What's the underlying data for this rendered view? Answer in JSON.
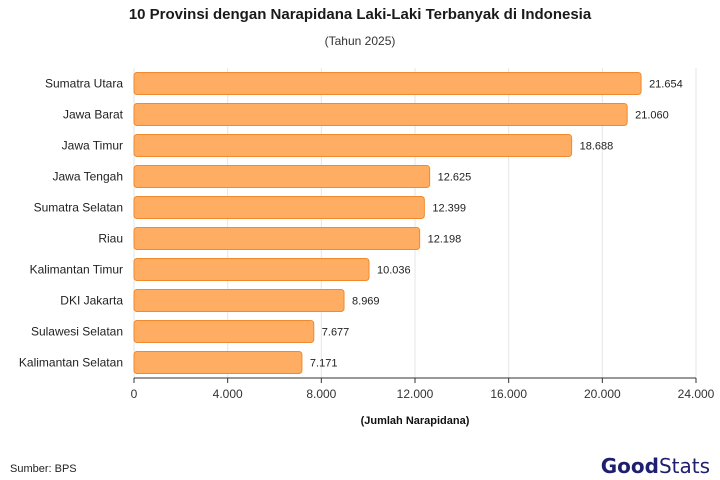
{
  "header": {
    "title": "10 Provinsi dengan Narapidana Laki-Laki Terbanyak di Indonesia",
    "subtitle": "(Tahun 2025)"
  },
  "footer": {
    "source": "Sumber: BPS",
    "brand_good": "Good",
    "brand_stats": "Stats"
  },
  "colors": {
    "bar_fill": "#ffad62",
    "bar_stroke": "#f08a2c",
    "grid": "#e6e6e6",
    "axis": "#333333"
  },
  "chart_data": {
    "type": "bar",
    "orientation": "horizontal",
    "title": "10 Provinsi dengan Narapidana Laki-Laki Terbanyak di Indonesia",
    "subtitle": "(Tahun 2025)",
    "xlabel": "(Jumlah Narapidana)",
    "ylabel": "",
    "xlim": [
      0,
      24000
    ],
    "x_ticks": [
      "0",
      "4.000",
      "8.000",
      "12.000",
      "16.000",
      "20.000",
      "24.000"
    ],
    "x_tick_values": [
      0,
      4000,
      8000,
      12000,
      16000,
      20000,
      24000
    ],
    "grid": true,
    "categories": [
      "Sumatra Utara",
      "Jawa Barat",
      "Jawa Timur",
      "Jawa Tengah",
      "Sumatra Selatan",
      "Riau",
      "Kalimantan Timur",
      "DKI Jakarta",
      "Sulawesi Selatan",
      "Kalimantan Selatan"
    ],
    "values": [
      21654,
      21060,
      18688,
      12625,
      12399,
      12198,
      10036,
      8969,
      7677,
      7171
    ],
    "value_labels": [
      "21.654",
      "21.060",
      "18.688",
      "12.625",
      "12.399",
      "12.198",
      "10.036",
      "8.969",
      "7.677",
      "7.171"
    ]
  }
}
